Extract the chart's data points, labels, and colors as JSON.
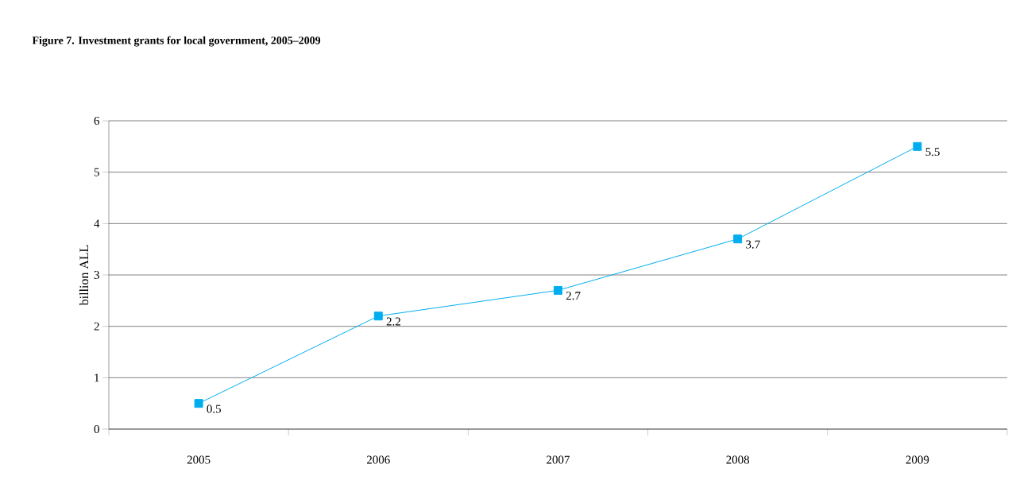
{
  "chart_data": {
    "type": "line",
    "title": "**Figure 7. Investment grants for local government, 2005–2009**",
    "ylabel": "billion ALL",
    "categories": [
      "2005",
      "2006",
      "2007",
      "2008",
      "2009"
    ],
    "series": [
      {
        "color": "#00aeef",
        "values": [
          0.5,
          2.2,
          2.7,
          3.7,
          5.5
        ]
      }
    ],
    "ylim": [
      0,
      6
    ],
    "yticks": [
      0,
      1,
      2,
      3,
      4,
      5,
      6
    ],
    "grid": "y",
    "marker": "square",
    "line_style": "solid",
    "data_labels": true
  }
}
